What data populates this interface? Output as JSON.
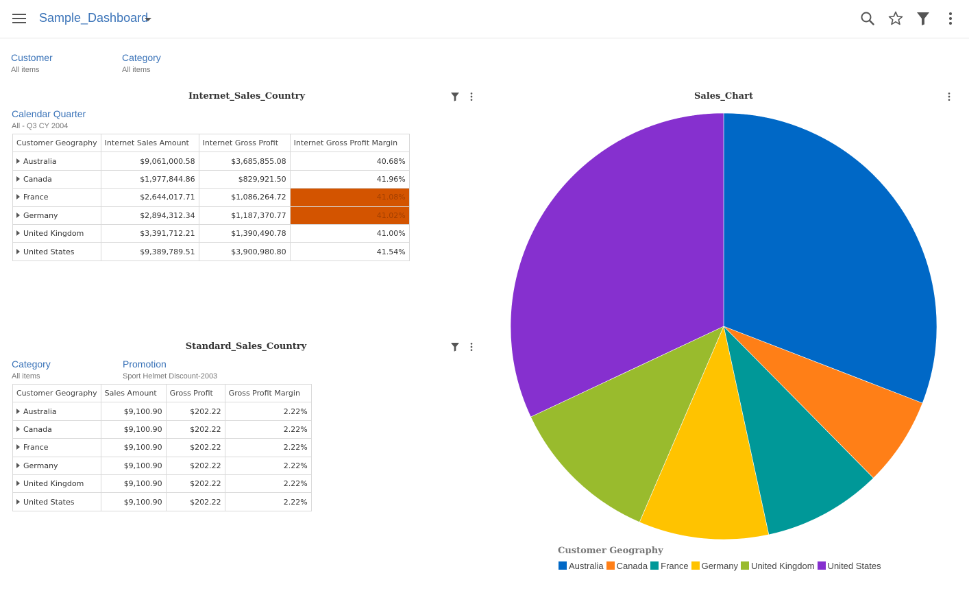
{
  "header": {
    "dashboard_title": "Sample_Dashboard",
    "icons": [
      "menu-icon",
      "search-icon",
      "star-icon",
      "filter-icon",
      "more-vert-icon"
    ]
  },
  "filters": [
    {
      "label": "Customer",
      "value": "All items"
    },
    {
      "label": "Category",
      "value": "All items"
    }
  ],
  "internet_panel": {
    "title": "Internet_Sales_Country",
    "filter_label": "Calendar Quarter",
    "filter_value": "All - Q3 CY 2004",
    "columns": [
      "Customer Geography",
      "Internet Sales Amount",
      "Internet Gross Profit",
      "Internet Gross Profit Margin"
    ],
    "rows": [
      {
        "geo": "Australia",
        "amount": "$9,061,000.58",
        "profit": "$3,685,855.08",
        "margin": "40.68%",
        "highlight": false
      },
      {
        "geo": "Canada",
        "amount": "$1,977,844.86",
        "profit": "$829,921.50",
        "margin": "41.96%",
        "highlight": false
      },
      {
        "geo": "France",
        "amount": "$2,644,017.71",
        "profit": "$1,086,264.72",
        "margin": "41.08%",
        "highlight": true
      },
      {
        "geo": "Germany",
        "amount": "$2,894,312.34",
        "profit": "$1,187,370.77",
        "margin": "41.02%",
        "highlight": true
      },
      {
        "geo": "United Kingdom",
        "amount": "$3,391,712.21",
        "profit": "$1,390,490.78",
        "margin": "41.00%",
        "highlight": false
      },
      {
        "geo": "United States",
        "amount": "$9,389,789.51",
        "profit": "$3,900,980.80",
        "margin": "41.54%",
        "highlight": false
      }
    ]
  },
  "standard_panel": {
    "title": "Standard_Sales_Country",
    "filters": [
      {
        "label": "Category",
        "value": "All items"
      },
      {
        "label": "Promotion",
        "value": "Sport Helmet Discount-2003"
      }
    ],
    "columns": [
      "Customer Geography",
      "Sales Amount",
      "Gross Profit",
      "Gross Profit Margin"
    ],
    "rows": [
      {
        "geo": "Australia",
        "amount": "$9,100.90",
        "profit": "$202.22",
        "margin": "2.22%"
      },
      {
        "geo": "Canada",
        "amount": "$9,100.90",
        "profit": "$202.22",
        "margin": "2.22%"
      },
      {
        "geo": "France",
        "amount": "$9,100.90",
        "profit": "$202.22",
        "margin": "2.22%"
      },
      {
        "geo": "Germany",
        "amount": "$9,100.90",
        "profit": "$202.22",
        "margin": "2.22%"
      },
      {
        "geo": "United Kingdom",
        "amount": "$9,100.90",
        "profit": "$202.22",
        "margin": "2.22%"
      },
      {
        "geo": "United States",
        "amount": "$9,100.90",
        "profit": "$202.22",
        "margin": "2.22%"
      }
    ]
  },
  "colors": {
    "accent": "#3a73b8",
    "highlight": "#d35400"
  },
  "chart_data": {
    "type": "pie",
    "title": "Sales_Chart",
    "legend_title": "Customer Geography",
    "legend_position": "bottom-left",
    "categories": [
      "Australia",
      "Canada",
      "France",
      "Germany",
      "United Kingdom",
      "United States"
    ],
    "values": [
      9061000.58,
      1977844.86,
      2644017.71,
      2894312.34,
      3391712.21,
      9389789.51
    ],
    "colors": [
      "#0068c6",
      "#ff7f17",
      "#009898",
      "#ffc300",
      "#99bb2d",
      "#8630cf"
    ]
  }
}
